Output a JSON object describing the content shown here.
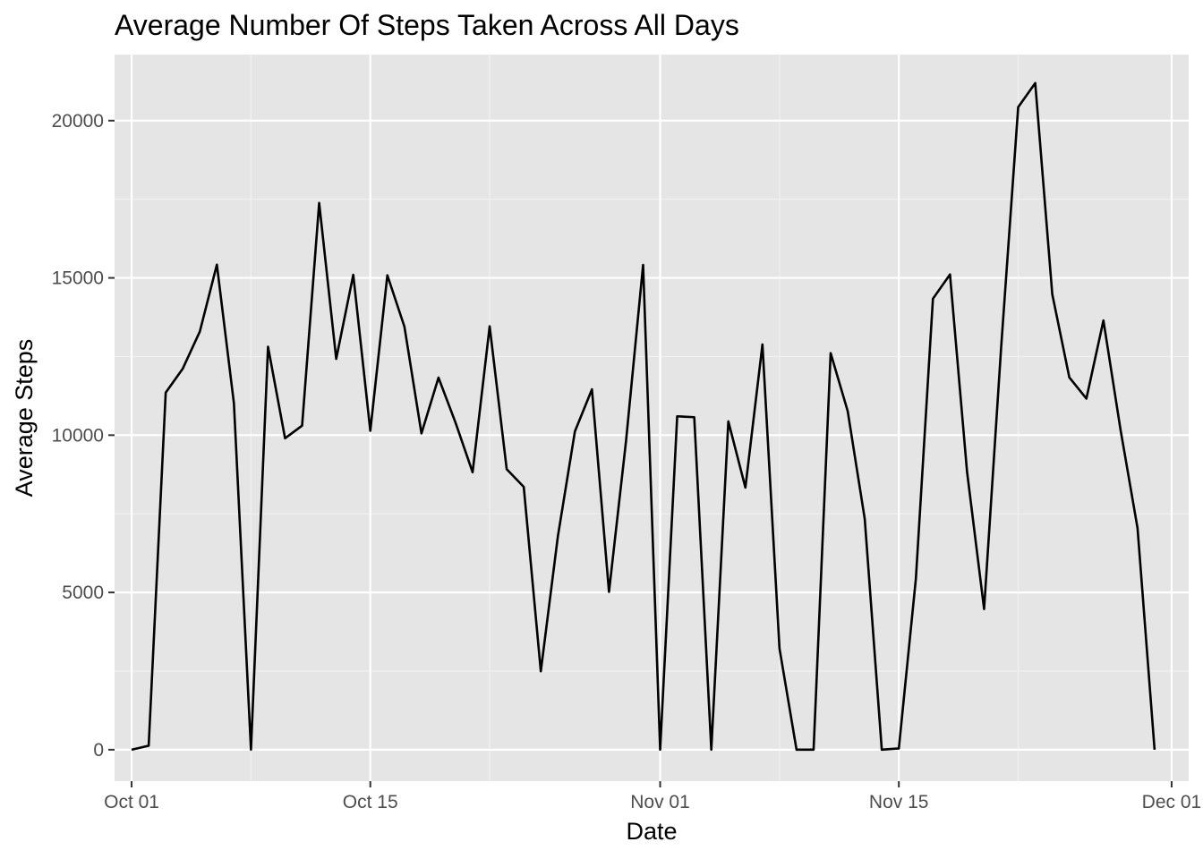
{
  "chart_data": {
    "type": "line",
    "title": "Average Number Of Steps Taken Across All Days",
    "xlabel": "Date",
    "ylabel": "Average Steps",
    "grid": true,
    "legend": "none",
    "ylim": [
      -1000,
      22100
    ],
    "xlim": [
      "2012-09-30",
      "2012-12-02"
    ],
    "y_ticks": [
      0,
      5000,
      10000,
      15000,
      20000
    ],
    "y_tick_labels": [
      "0",
      "5000",
      "10000",
      "15000",
      "20000"
    ],
    "x_ticks": [
      "2012-10-01",
      "2012-10-15",
      "2012-11-01",
      "2012-11-15",
      "2012-12-01"
    ],
    "x_tick_labels": [
      "Oct 01",
      "Oct 15",
      "Nov 01",
      "Nov 15",
      "Dec 01"
    ],
    "x_minor_ticks": [
      "2012-10-08",
      "2012-10-22",
      "2012-11-08",
      "2012-11-22"
    ],
    "series": [
      {
        "color": "#000000",
        "x": [
          "2012-10-01",
          "2012-10-02",
          "2012-10-03",
          "2012-10-04",
          "2012-10-05",
          "2012-10-06",
          "2012-10-07",
          "2012-10-08",
          "2012-10-09",
          "2012-10-10",
          "2012-10-11",
          "2012-10-12",
          "2012-10-13",
          "2012-10-14",
          "2012-10-15",
          "2012-10-16",
          "2012-10-17",
          "2012-10-18",
          "2012-10-19",
          "2012-10-20",
          "2012-10-21",
          "2012-10-22",
          "2012-10-23",
          "2012-10-24",
          "2012-10-25",
          "2012-10-26",
          "2012-10-27",
          "2012-10-28",
          "2012-10-29",
          "2012-10-30",
          "2012-10-31",
          "2012-11-01",
          "2012-11-02",
          "2012-11-03",
          "2012-11-04",
          "2012-11-05",
          "2012-11-06",
          "2012-11-07",
          "2012-11-08",
          "2012-11-09",
          "2012-11-10",
          "2012-11-11",
          "2012-11-12",
          "2012-11-13",
          "2012-11-14",
          "2012-11-15",
          "2012-11-16",
          "2012-11-17",
          "2012-11-18",
          "2012-11-19",
          "2012-11-20",
          "2012-11-21",
          "2012-11-22",
          "2012-11-23",
          "2012-11-24",
          "2012-11-25",
          "2012-11-26",
          "2012-11-27",
          "2012-11-28",
          "2012-11-29",
          "2012-11-30"
        ],
        "y": [
          0,
          126,
          11352,
          12116,
          13294,
          15420,
          11015,
          0,
          12811,
          9900,
          10304,
          17382,
          12426,
          15098,
          10139,
          15084,
          13452,
          10056,
          11829,
          10395,
          8821,
          13460,
          8918,
          8355,
          2492,
          6778,
          10119,
          11458,
          5018,
          9819,
          15414,
          0,
          10600,
          10571,
          0,
          10439,
          8334,
          12883,
          3219,
          0,
          0,
          12608,
          10765,
          7336,
          0,
          41,
          5441,
          14339,
          15110,
          8841,
          4472,
          12787,
          20427,
          21194,
          14478,
          11834,
          11162,
          13646,
          10183,
          7047,
          0
        ]
      }
    ]
  }
}
